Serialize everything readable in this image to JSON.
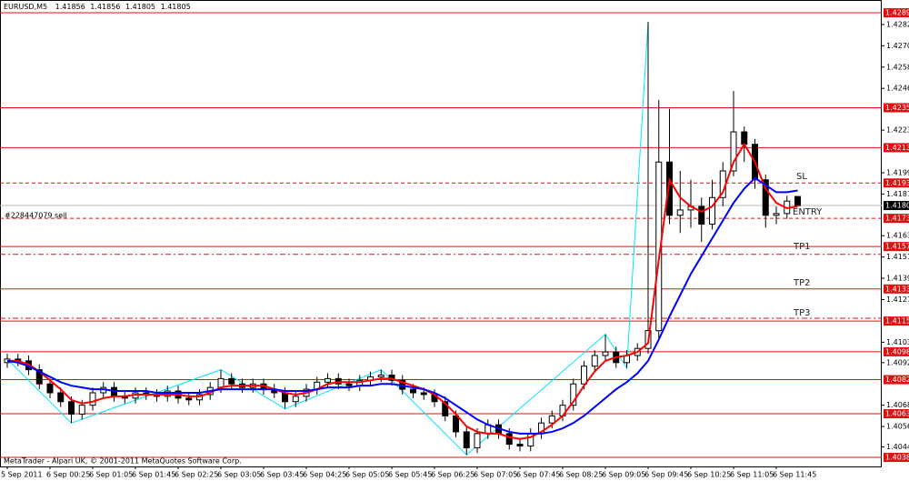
{
  "chart_data": {
    "type": "candlestick",
    "title": "EURUSD,M5",
    "categories": [
      "5 Sep 2011",
      null,
      null,
      null,
      "6 Sep 00:25",
      null,
      null,
      null,
      "6 Sep 01:05",
      null,
      null,
      null,
      "6 Sep 01:45",
      null,
      null,
      null,
      "6 Sep 02:25",
      null,
      null,
      null,
      "6 Sep 03:05",
      null,
      null,
      null,
      "6 Sep 03:45",
      null,
      null,
      null,
      "6 Sep 04:25",
      null,
      null,
      null,
      "6 Sep 05:05",
      null,
      null,
      null,
      "6 Sep 05:45",
      null,
      null,
      null,
      "6 Sep 06:25",
      null,
      null,
      null,
      "6 Sep 07:05",
      null,
      null,
      null,
      "6 Sep 07:45",
      null,
      null,
      null,
      "6 Sep 08:25",
      null,
      null,
      null,
      "6 Sep 09:05",
      null,
      null,
      null,
      "6 Sep 09:45",
      null,
      null,
      null,
      "6 Sep 10:25",
      null,
      null,
      null,
      "6 Sep 11:05",
      null,
      null,
      null,
      "6 Sep 11:45",
      null,
      null
    ],
    "open": [
      1.4092,
      1.4094,
      1.4093,
      1.4088,
      1.408,
      1.4075,
      1.407,
      1.4063,
      1.4068,
      1.4075,
      1.4078,
      1.4073,
      1.4072,
      1.4075,
      1.4074,
      1.4073,
      1.4076,
      1.4072,
      1.4071,
      1.4074,
      1.4078,
      1.4083,
      1.408,
      1.4078,
      1.408,
      1.4077,
      1.4075,
      1.407,
      1.4073,
      1.4077,
      1.4081,
      1.4083,
      1.408,
      1.4079,
      1.4082,
      1.4084,
      1.4085,
      1.4082,
      1.4077,
      1.4075,
      1.4074,
      1.407,
      1.4062,
      1.4053,
      1.4044,
      1.4052,
      1.4057,
      1.4052,
      1.4046,
      1.4045,
      1.4052,
      1.4058,
      1.4062,
      1.4068,
      1.408,
      1.409,
      1.4096,
      1.4098,
      1.4092,
      1.4096,
      1.41,
      1.411,
      1.4205,
      1.4175,
      1.4178,
      1.418,
      1.417,
      1.4185,
      1.42,
      1.4222,
      1.4215,
      1.4195,
      1.4175,
      1.4176,
      1.41856
    ],
    "high": [
      1.4097,
      1.4097,
      1.4096,
      1.4091,
      1.4083,
      1.4078,
      1.4073,
      1.4071,
      1.4078,
      1.4081,
      1.4081,
      1.4076,
      1.4078,
      1.4078,
      1.4077,
      1.4079,
      1.4079,
      1.4075,
      1.4077,
      1.4081,
      1.4088,
      1.4086,
      1.4083,
      1.4083,
      1.4083,
      1.408,
      1.4078,
      1.4076,
      1.408,
      1.4084,
      1.4086,
      1.4086,
      1.4083,
      1.4085,
      1.4087,
      1.4088,
      1.4088,
      1.4085,
      1.408,
      1.4078,
      1.4077,
      1.4073,
      1.4065,
      1.4056,
      1.4055,
      1.406,
      1.406,
      1.4055,
      1.4049,
      1.4055,
      1.4061,
      1.4065,
      1.4071,
      1.4083,
      1.4093,
      1.4099,
      1.4108,
      1.4101,
      1.4099,
      1.4103,
      1.4284,
      1.424,
      1.4235,
      1.42,
      1.4195,
      1.4185,
      1.4195,
      1.4205,
      1.4245,
      1.4225,
      1.4218,
      1.4198,
      1.418,
      1.4186,
      1.41856
    ],
    "low": [
      1.4089,
      1.409,
      1.4085,
      1.4077,
      1.4072,
      1.4067,
      1.4058,
      1.406,
      1.4065,
      1.4072,
      1.407,
      1.4069,
      1.4069,
      1.4071,
      1.407,
      1.407,
      1.4069,
      1.4068,
      1.4068,
      1.4071,
      1.4075,
      1.4077,
      1.4075,
      1.4075,
      1.4074,
      1.4072,
      1.4066,
      1.4067,
      1.407,
      1.4074,
      1.4078,
      1.4077,
      1.4076,
      1.4076,
      1.4079,
      1.4081,
      1.4079,
      1.4074,
      1.4072,
      1.4071,
      1.4067,
      1.4059,
      1.405,
      1.404,
      1.4041,
      1.4049,
      1.4049,
      1.4043,
      1.4042,
      1.4042,
      1.4049,
      1.4055,
      1.4059,
      1.4065,
      1.4077,
      1.4087,
      1.4093,
      1.4089,
      1.4089,
      1.4093,
      1.4097,
      1.4105,
      1.417,
      1.4165,
      1.4168,
      1.416,
      1.4167,
      1.418,
      1.4197,
      1.4205,
      1.419,
      1.4168,
      1.417,
      1.4173,
      1.41805
    ],
    "close": [
      1.4094,
      1.4093,
      1.4088,
      1.408,
      1.4075,
      1.407,
      1.4063,
      1.4068,
      1.4075,
      1.4078,
      1.4073,
      1.4072,
      1.4075,
      1.4074,
      1.4073,
      1.4076,
      1.4072,
      1.4071,
      1.4074,
      1.4078,
      1.4083,
      1.408,
      1.4078,
      1.408,
      1.4077,
      1.4075,
      1.407,
      1.4073,
      1.4077,
      1.4081,
      1.4083,
      1.408,
      1.4079,
      1.4082,
      1.4084,
      1.4085,
      1.4082,
      1.4077,
      1.4075,
      1.4074,
      1.407,
      1.4062,
      1.4053,
      1.4044,
      1.4052,
      1.4057,
      1.4052,
      1.4046,
      1.4045,
      1.4052,
      1.4058,
      1.4062,
      1.4068,
      1.408,
      1.409,
      1.4096,
      1.4098,
      1.4092,
      1.4096,
      1.41,
      1.411,
      1.4205,
      1.4175,
      1.4178,
      1.418,
      1.417,
      1.4185,
      1.42,
      1.4222,
      1.4215,
      1.4195,
      1.4175,
      1.4176,
      1.4183,
      1.41805
    ],
    "series": [
      {
        "color": "#ff0000",
        "values": [
          1.4093,
          1.4093,
          1.4091,
          1.4087,
          1.4082,
          1.4077,
          1.4071,
          1.4069,
          1.407,
          1.4072,
          1.4073,
          1.4073,
          1.4074,
          1.4074,
          1.4074,
          1.4074,
          1.4074,
          1.4073,
          1.4073,
          1.4075,
          1.4078,
          1.4079,
          1.4079,
          1.4079,
          1.4079,
          1.4077,
          1.4075,
          1.4074,
          1.4075,
          1.4077,
          1.408,
          1.4081,
          1.4081,
          1.4081,
          1.4082,
          1.4083,
          1.4083,
          1.4081,
          1.4079,
          1.4077,
          1.4074,
          1.4069,
          1.4063,
          1.4056,
          1.4053,
          1.4052,
          1.4052,
          1.405,
          1.4049,
          1.405,
          1.4053,
          1.4057,
          1.4062,
          1.407,
          1.4079,
          1.4087,
          1.4093,
          1.4095,
          1.4096,
          1.4098,
          1.4103,
          1.415,
          1.4195,
          1.4185,
          1.418,
          1.4177,
          1.418,
          1.4188,
          1.4205,
          1.4215,
          1.4205,
          1.419,
          1.4182,
          1.4179,
          1.418
        ]
      },
      {
        "color": "#0000ff",
        "values": [
          1.4093,
          1.4092,
          1.409,
          1.4087,
          1.4084,
          1.4081,
          1.4079,
          1.4078,
          1.4077,
          1.4077,
          1.4076,
          1.4076,
          1.4076,
          1.4076,
          1.4075,
          1.4075,
          1.4075,
          1.4075,
          1.4075,
          1.4076,
          1.4077,
          1.4077,
          1.4077,
          1.4077,
          1.4077,
          1.4077,
          1.4076,
          1.4076,
          1.4076,
          1.4077,
          1.4078,
          1.4078,
          1.4078,
          1.4079,
          1.4079,
          1.408,
          1.408,
          1.4079,
          1.4078,
          1.4077,
          1.4075,
          1.4072,
          1.4068,
          1.4064,
          1.406,
          1.4057,
          1.4055,
          1.4053,
          1.4052,
          1.4052,
          1.4052,
          1.4053,
          1.4055,
          1.4058,
          1.4062,
          1.4067,
          1.4072,
          1.4077,
          1.4081,
          1.4086,
          1.4093,
          1.4105,
          1.4118,
          1.413,
          1.4142,
          1.4152,
          1.4162,
          1.4172,
          1.4182,
          1.419,
          1.4196,
          1.4192,
          1.4188,
          1.4188,
          1.4189
        ]
      }
    ],
    "zigzag": {
      "color": "#00e5ff",
      "x": [
        0,
        6,
        20,
        26,
        35,
        43,
        56,
        58,
        60
      ],
      "values": [
        1.4094,
        1.4058,
        1.4088,
        1.4066,
        1.4088,
        1.404,
        1.4108,
        1.4089,
        1.4284
      ]
    },
    "levels": [
      {
        "value": 1.42891,
        "dashed": false
      },
      {
        "value": 1.42356,
        "dashed": false
      },
      {
        "value": 1.42131,
        "dashed": false
      },
      {
        "value": 1.41932,
        "dashed": true
      },
      {
        "value": 1.41733,
        "dashed": true
      },
      {
        "value": 1.41574,
        "dashed": false
      },
      {
        "value": 1.41335,
        "dashed": false
      },
      {
        "value": 1.41154,
        "dashed": false
      },
      {
        "value": 1.40981,
        "dashed": false
      },
      {
        "value": 1.40824,
        "dashed": false
      },
      {
        "value": 1.40632,
        "dashed": false
      },
      {
        "value": 1.40386,
        "dashed": false
      }
    ],
    "level_color": "#e01010",
    "order_levels": [
      1.4153,
      1.4117
    ],
    "annotations": [
      "SL",
      "ENTRY",
      "TP1",
      "TP2",
      "TP3",
      "#228447079 sell"
    ],
    "footer": "MetaTrader - Alpari UK, © 2001-2011 MetaQuotes Software Corp.",
    "ylim": [
      1.40335,
      1.42963
    ],
    "yticks": [
      1.42825,
      1.42705,
      1.42585,
      1.42465,
      1.4223,
      1.4199,
      1.4187,
      1.41635,
      1.41515,
      1.41395,
      1.41275,
      1.41035,
      1.4092,
      1.4068,
      1.4056,
      1.40445
    ],
    "grid": false
  }
}
